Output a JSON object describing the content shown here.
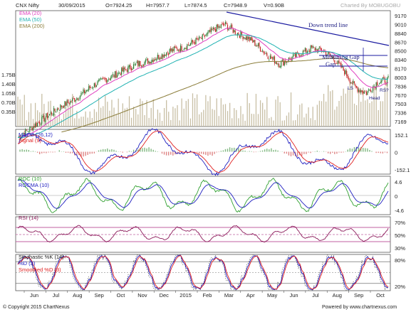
{
  "header": {
    "symbol": "CNX Nifty",
    "date": "30/09/2015",
    "open": "O=7924.25",
    "high": "H=7957.7",
    "low": "L=7874.5",
    "close": "C=7948.9",
    "volume": "V=0.90B",
    "charted_by": "Charted By MOBUGOBU"
  },
  "footer": {
    "copyright": "© Copyright 2015 ChartNexus",
    "powered": "Powered by www.chartnexus.com"
  },
  "colors": {
    "candle_up": "#2e7d32",
    "candle_down": "#c62828",
    "ema20": "#e040c0",
    "ema50": "#20b2b2",
    "ema200": "#8b7d3a",
    "volume": "#c8bfa5",
    "blue": "#2020c0",
    "red": "#e02020",
    "green": "#30a030",
    "rsi": "#8b1a5a",
    "band": "#c060a0"
  },
  "chart_data": [
    {
      "type": "candlestick",
      "title": "CNX Nifty",
      "legend": [
        "EMA (20)",
        "EMA (50)",
        "EMA (200)"
      ],
      "yticks": [
        "9170",
        "9010",
        "8840",
        "8670",
        "8500",
        "8340",
        "8170",
        "8003",
        "7836",
        "7670",
        "7503",
        "7336",
        "7169"
      ],
      "volume_ticks": [
        "1.75B",
        "1.40B",
        "1.05B",
        "0.70B",
        "0.35B"
      ],
      "close_series": [
        6850,
        7000,
        7150,
        7300,
        7450,
        7550,
        7700,
        7850,
        7950,
        8050,
        8150,
        8250,
        8300,
        8400,
        8500,
        8550,
        8650,
        8750,
        8900,
        9000,
        8850,
        8750,
        8600,
        8400,
        8250,
        8350,
        8450,
        8550,
        8500,
        8350,
        8100,
        7800,
        7700,
        7900,
        7950
      ],
      "annotations": [
        "Down trend line",
        "Measuring Gap",
        "LS",
        "Head",
        "RS?"
      ]
    },
    {
      "type": "line",
      "title": "MACD (26,12)",
      "series": [
        {
          "name": "MACD (26,12)"
        },
        {
          "name": "Signal (9)"
        }
      ],
      "yticks": [
        "152.1",
        "0",
        "-152.1"
      ]
    },
    {
      "type": "line",
      "title": "ROC (10)",
      "series": [
        {
          "name": "ROC (10)"
        },
        {
          "name": "ROCMA (10)"
        }
      ],
      "yticks": [
        "4.6",
        "0",
        "-4.6"
      ]
    },
    {
      "type": "line",
      "title": "RSI (14)",
      "yticks": [
        "70%",
        "50%",
        "30%"
      ],
      "levels": [
        70,
        50,
        30
      ]
    },
    {
      "type": "line",
      "title": "Stochastic %K (14)",
      "series": [
        {
          "name": "Stochastic %K (14)"
        },
        {
          "name": "%D (3)"
        },
        {
          "name": "Smoothed %D (3)"
        }
      ],
      "yticks": [
        "80%",
        "20%"
      ],
      "levels": [
        80,
        50,
        20
      ]
    }
  ],
  "xaxis": {
    "labels": [
      "Jun",
      "Jul",
      "Aug",
      "Sep",
      "Oct",
      "Nov",
      "Dec",
      "2015",
      "Feb",
      "Mar",
      "Apr",
      "May",
      "Jun",
      "Jul",
      "Aug",
      "Sep",
      "Oct"
    ]
  }
}
